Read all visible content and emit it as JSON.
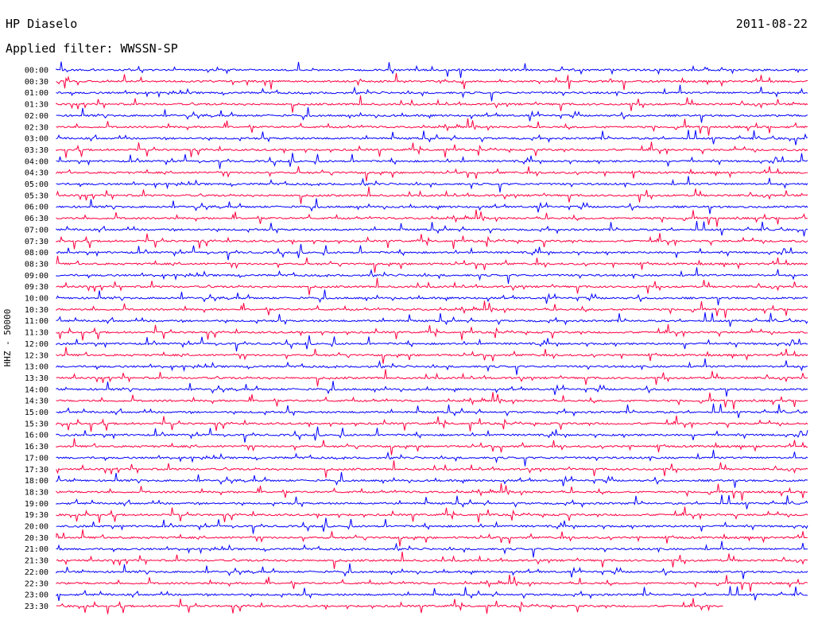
{
  "header": {
    "station": "HP Diaselo",
    "date": "2011-08-22",
    "filter": "Applied filter: WWSSN-SP"
  },
  "chart_data": {
    "type": "line",
    "title": "HP Diaselo",
    "subtitle": "Applied filter: WWSSN-SP",
    "date": "2011-08-22",
    "ylabel": "HHZ - 50000",
    "trace_colors": [
      "#0000ff",
      "#ff0040"
    ],
    "rows": [
      "00:00",
      "00:30",
      "01:00",
      "01:30",
      "02:00",
      "02:30",
      "03:00",
      "03:30",
      "04:00",
      "04:30",
      "05:00",
      "05:30",
      "06:00",
      "06:30",
      "07:00",
      "07:30",
      "08:00",
      "08:30",
      "09:00",
      "09:30",
      "10:00",
      "10:30",
      "11:00",
      "11:30",
      "12:00",
      "12:30",
      "13:00",
      "13:30",
      "14:00",
      "14:30",
      "15:00",
      "15:30",
      "16:00",
      "16:30",
      "17:00",
      "17:30",
      "18:00",
      "18:30",
      "19:00",
      "19:30",
      "20:00",
      "20:30",
      "21:00",
      "21:30",
      "22:00",
      "22:30",
      "23:00",
      "23:30"
    ],
    "grid": false,
    "legend": "none"
  }
}
